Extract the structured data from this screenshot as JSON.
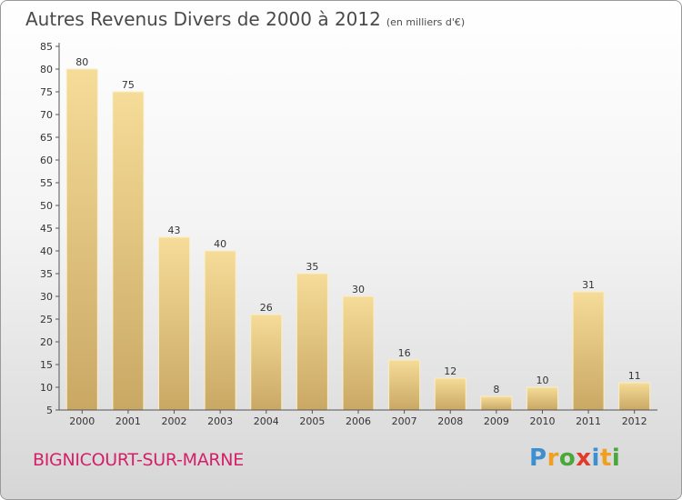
{
  "title": "Autres Revenus Divers de 2000 à 2012",
  "unit_note": "(en milliers d'€)",
  "commune": "BIGNICOURT-SUR-MARNE",
  "brand": {
    "letters": [
      "P",
      "r",
      "o",
      "x",
      "i",
      "t",
      "i"
    ],
    "colors": [
      "#3c8fd0",
      "#f0a020",
      "#4aa83a",
      "#e23a2a",
      "#3c8fd0",
      "#f0a020",
      "#4aa83a"
    ]
  },
  "chart_data": {
    "type": "bar",
    "title": "Autres Revenus Divers de 2000 à 2012",
    "categories": [
      "2000",
      "2001",
      "2002",
      "2003",
      "2004",
      "2005",
      "2006",
      "2007",
      "2008",
      "2009",
      "2010",
      "2011",
      "2012"
    ],
    "values": [
      80,
      75,
      43,
      40,
      26,
      35,
      30,
      16,
      12,
      8,
      10,
      31,
      11
    ],
    "data_labels": [
      "80",
      "75",
      "43",
      "40",
      "26",
      "35",
      "30",
      "16",
      "12",
      "8",
      "10",
      "31",
      "11"
    ],
    "yticks": [
      "5",
      "10",
      "15",
      "20",
      "25",
      "30",
      "35",
      "40",
      "45",
      "50",
      "55",
      "60",
      "65",
      "70",
      "75",
      "80",
      "85"
    ],
    "ylim": [
      5,
      85
    ],
    "xlabel": "",
    "ylabel": "",
    "grid": false,
    "legend": "none",
    "bar_color": "#e6c87a"
  }
}
